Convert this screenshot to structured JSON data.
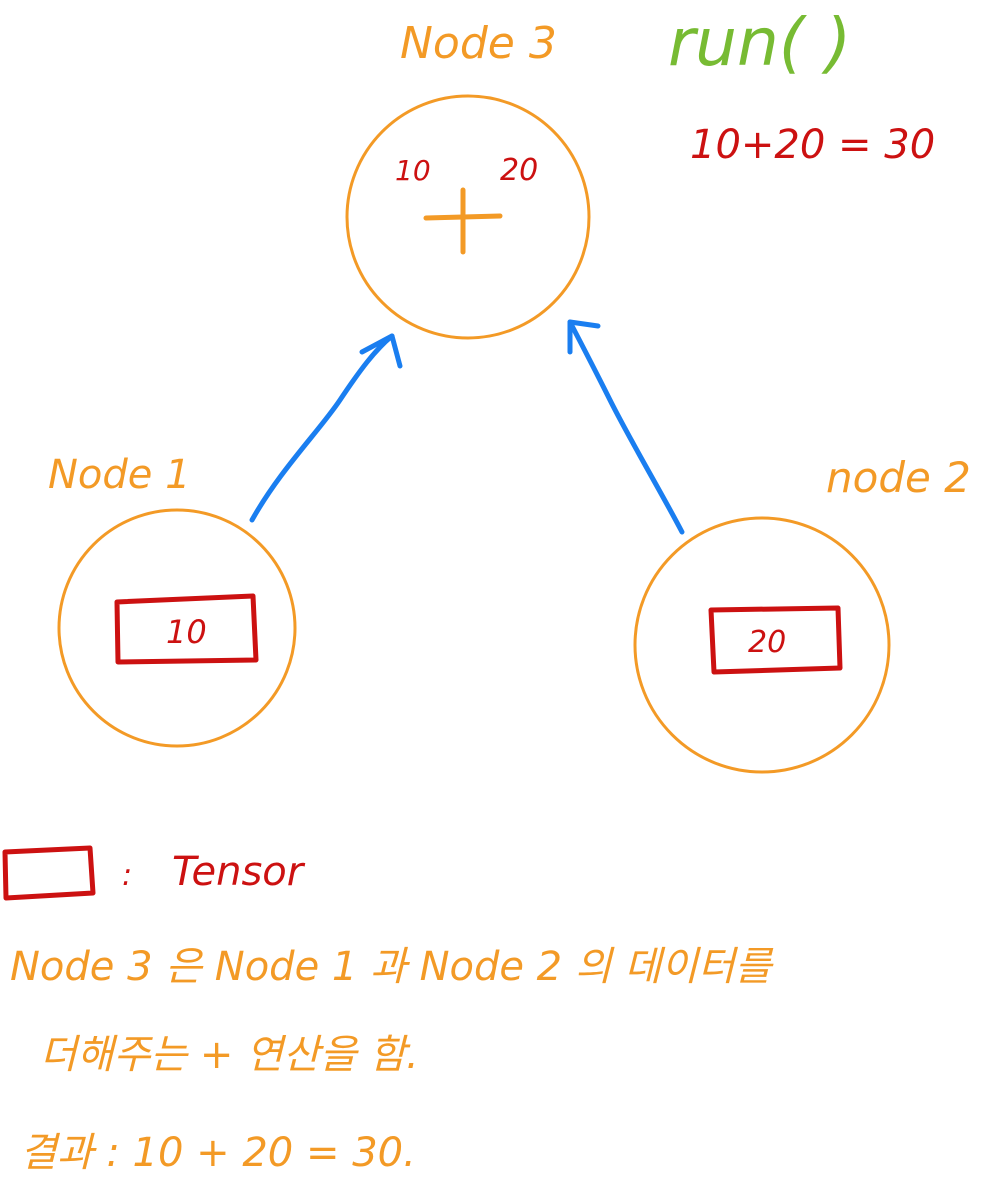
{
  "nodes": {
    "node1": {
      "label": "Node 1",
      "tensor_value": "10"
    },
    "node2": {
      "label": "node 2",
      "tensor_value": "20"
    },
    "node3": {
      "label": "Node 3",
      "input_a": "10",
      "input_b": "20",
      "operator": "+"
    }
  },
  "run": {
    "label": "run( )",
    "equation": "10+20 = 30"
  },
  "legend": {
    "colon": ":",
    "label": "Tensor"
  },
  "notes": {
    "line1": "Node 3 은  Node 1 과 Node 2 의 데이터를",
    "line2": "더해주는 + 연산을 함.",
    "line3": "결과 : 10 + 20 = 30."
  },
  "colors": {
    "node": "#f39a26",
    "tensor": "#cc1111",
    "edge": "#1a7ef0",
    "run": "#77bb33"
  }
}
